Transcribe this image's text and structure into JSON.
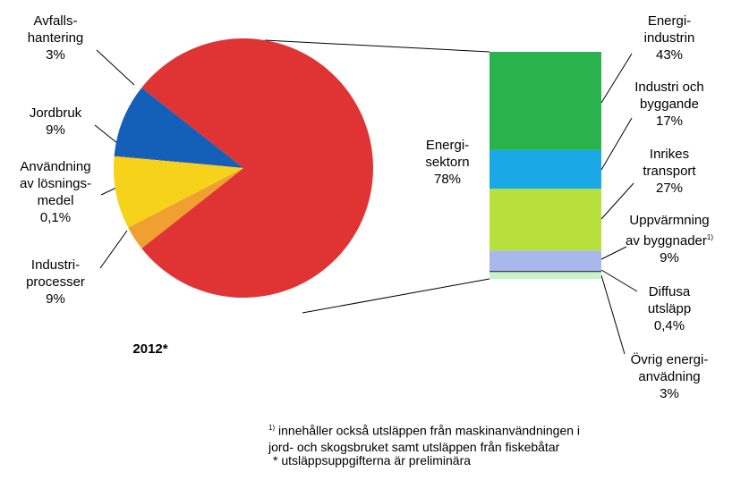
{
  "chart_data": [
    {
      "type": "pie",
      "title": "2012*",
      "categories": [
        "Energi-\nsektorn",
        "Industri-\nprocesser",
        "Användning\nav lösnings-\nmedel",
        "Jordbruk",
        "Avfalls-\nhantering"
      ],
      "values": [
        78,
        9,
        0.1,
        9,
        3
      ],
      "value_labels": [
        "78%",
        "9%",
        "0,1%",
        "9%",
        "3%"
      ],
      "colors": [
        "#e03434",
        "#1460b8",
        "#2a3a9a",
        "#f7d21a",
        "#f0a030"
      ]
    },
    {
      "type": "stacked_bar",
      "categories": [
        "Energi-\nindustrin",
        "Industri och\nbyggande",
        "Inrikes\ntransport",
        "Uppvärmning\nav byggnader",
        "Diffusa\nutsläpp",
        "Övrig energi-\nanvädning"
      ],
      "values": [
        43,
        17,
        27,
        9,
        0.4,
        3
      ],
      "value_labels": [
        "43%",
        "17%",
        "27%",
        "9%",
        "0,4%",
        "3%"
      ],
      "colors": [
        "#2ab34c",
        "#1aa8e6",
        "#b8e03c",
        "#a8b8ec",
        "#000000",
        "#c8f2c8"
      ]
    }
  ],
  "notes": [
    {
      "marker": "1)",
      "text": "innehåller också utsläppen från  maskinanvändningen i\njord- och skogsbruket samt utsläppen från fiskebåtar"
    },
    {
      "text": "* utsläppsuppgifterna är preliminära"
    }
  ]
}
